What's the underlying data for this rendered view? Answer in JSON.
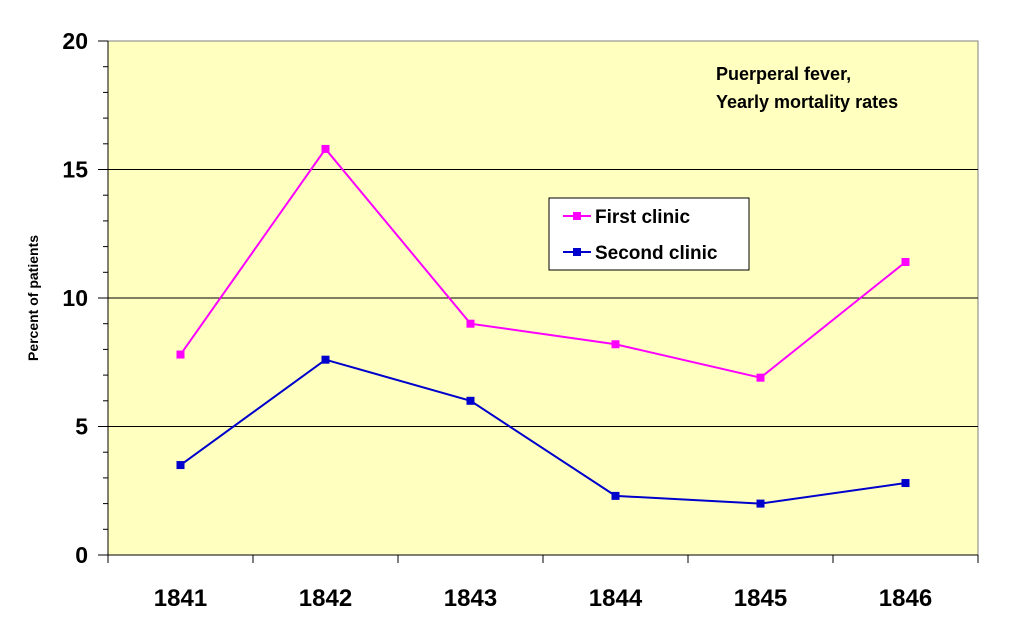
{
  "chart_data": {
    "type": "line",
    "categories": [
      "1841",
      "1842",
      "1843",
      "1844",
      "1845",
      "1846"
    ],
    "series": [
      {
        "name": "First clinic",
        "color": "#ff00ff",
        "values": [
          7.8,
          15.8,
          9.0,
          8.2,
          6.9,
          11.4
        ]
      },
      {
        "name": "Second clinic",
        "color": "#0000cc",
        "values": [
          3.5,
          7.6,
          6.0,
          2.3,
          2.0,
          2.8
        ]
      }
    ],
    "ylabel": "Percent of patients",
    "xlabel": "",
    "ylim": [
      0,
      20
    ],
    "yticks": [
      "0",
      "5",
      "10",
      "15",
      "20"
    ],
    "annotation": [
      "Puerperal fever,",
      "Yearly mortality rates"
    ],
    "plot_background": "#ffffc0",
    "grid": true,
    "legend_position": "center-right"
  }
}
